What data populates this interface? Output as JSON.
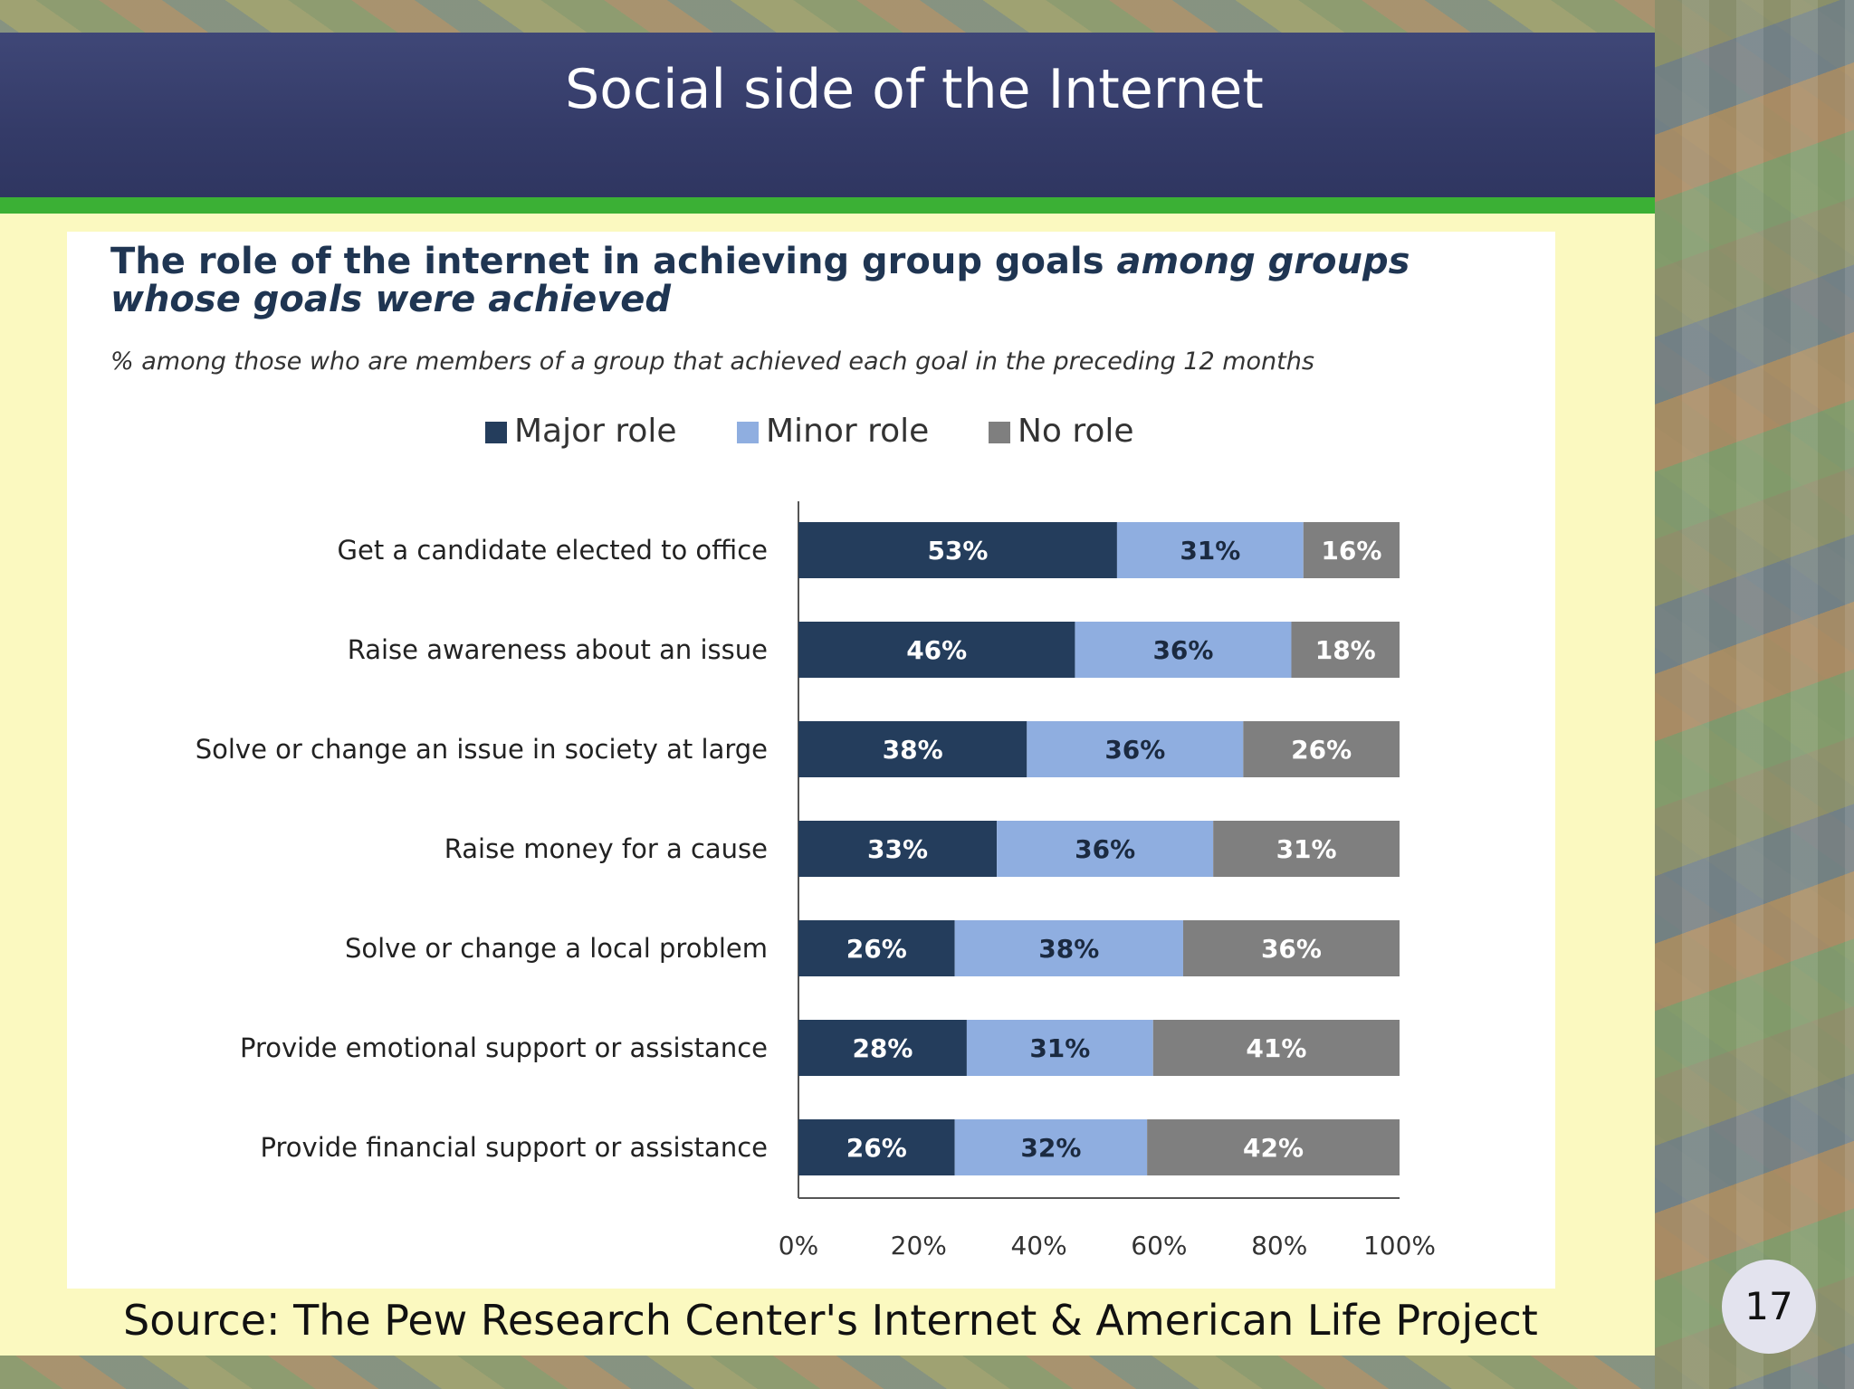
{
  "slide": {
    "title": "Social side of the Internet",
    "source": "Source:  The Pew Research Center's Internet & American Life Project",
    "page_number": "17"
  },
  "colors": {
    "major": "#243d5c",
    "minor": "#8faee0",
    "none": "#7f7f7f",
    "title_text": "#1f3552"
  },
  "chart_data": {
    "type": "bar",
    "orientation": "horizontal",
    "stacked": true,
    "title_main": "The role of the internet in achieving group goals",
    "title_italic": "among groups whose goals were achieved",
    "subtitle": "% among those who are members of a group that achieved each goal in the preceding 12 months",
    "categories": [
      "Get a candidate elected to office",
      "Raise awareness about an issue",
      "Solve or change an issue in society at large",
      "Raise money for a cause",
      "Solve or change a local problem",
      "Provide emotional support or assistance",
      "Provide financial support or assistance"
    ],
    "series": [
      {
        "name": "Major role",
        "values": [
          53,
          46,
          38,
          33,
          26,
          28,
          26
        ]
      },
      {
        "name": "Minor role",
        "values": [
          31,
          36,
          36,
          36,
          38,
          31,
          32
        ]
      },
      {
        "name": "No role",
        "values": [
          16,
          18,
          26,
          31,
          36,
          41,
          42
        ]
      }
    ],
    "xlim": [
      0,
      100
    ],
    "xticks": [
      "0%",
      "20%",
      "40%",
      "60%",
      "80%",
      "100%"
    ],
    "value_suffix": "%",
    "legend_position": "top-center",
    "grid": false
  }
}
